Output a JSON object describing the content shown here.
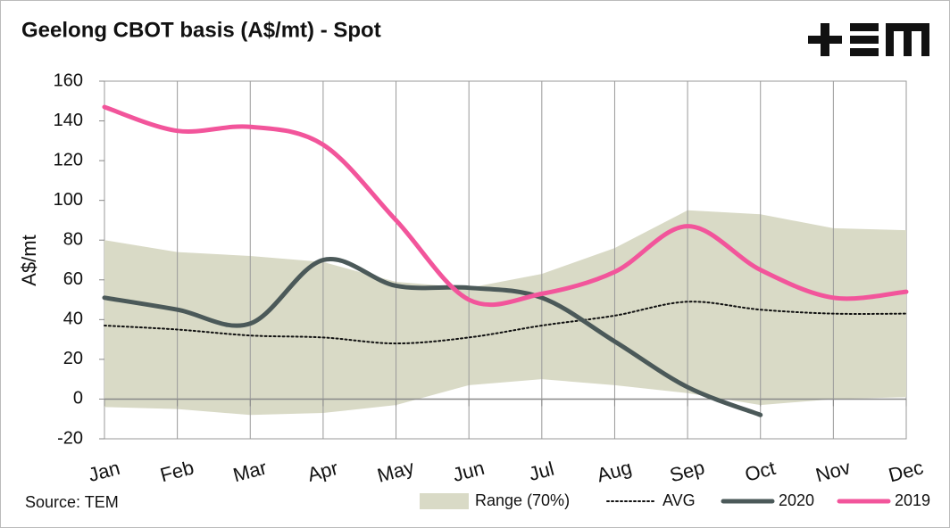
{
  "chart_data": {
    "type": "line",
    "title": "Geelong CBOT basis (A$/mt) - Spot",
    "y_label": "A$/mt",
    "source": "Source: TEM",
    "categories": [
      "Jan",
      "Feb",
      "Mar",
      "Apr",
      "May",
      "Jun",
      "Jul",
      "Aug",
      "Sep",
      "Oct",
      "Nov",
      "Dec"
    ],
    "ylim": [
      -20,
      160
    ],
    "yticks": [
      -20,
      0,
      20,
      40,
      60,
      80,
      100,
      120,
      140,
      160
    ],
    "grid": "vertical",
    "series": [
      {
        "name": "Range (70%)",
        "kind": "band",
        "color": "#d9dac6",
        "high": [
          80,
          74,
          72,
          69,
          59,
          56,
          63,
          76,
          95,
          93,
          86,
          85
        ],
        "low": [
          -4,
          -5,
          -8,
          -7,
          -3,
          7,
          10,
          7,
          3,
          -3,
          0,
          1
        ]
      },
      {
        "name": "AVG",
        "kind": "dotted",
        "color": "#111111",
        "values": [
          37,
          35,
          32,
          31,
          28,
          31,
          37,
          42,
          49,
          45,
          43,
          43
        ]
      },
      {
        "name": "2020",
        "kind": "solid",
        "color": "#4b5959",
        "values": [
          51,
          45,
          38,
          70,
          57,
          56,
          51,
          29,
          6,
          -8,
          null,
          null
        ]
      },
      {
        "name": "2019",
        "kind": "solid",
        "color": "#f2559b",
        "values": [
          147,
          135,
          137,
          128,
          90,
          50,
          53,
          64,
          87,
          65,
          51,
          54
        ]
      }
    ]
  }
}
